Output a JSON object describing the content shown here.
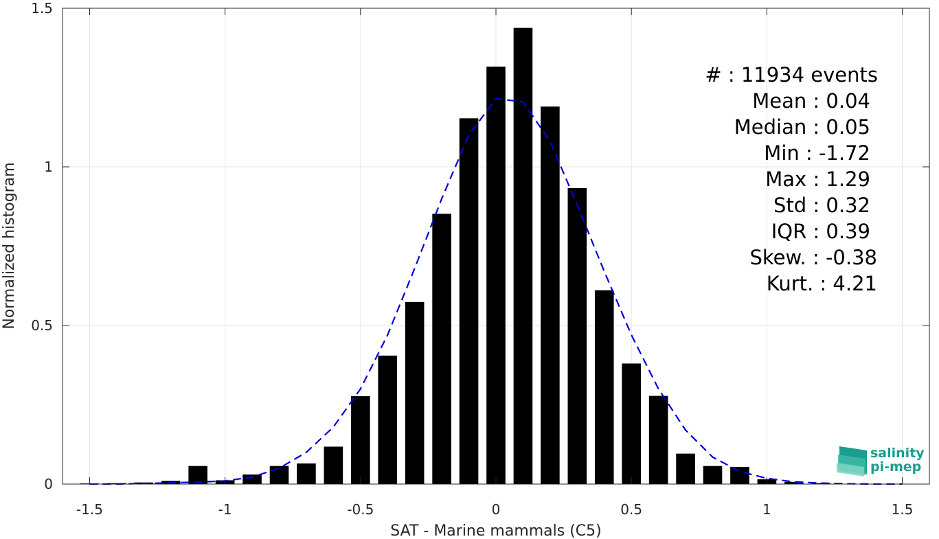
{
  "chart_data": {
    "type": "bar",
    "title": "",
    "xlabel": "SAT - Marine mammals (C5)",
    "ylabel": "Normalized histogram",
    "xlim": [
      -1.6,
      1.6
    ],
    "ylim": [
      0,
      1.5
    ],
    "xticks": [
      -1.5,
      -1,
      -0.5,
      0,
      0.5,
      1,
      1.5
    ],
    "xtick_labels": [
      "-1.5",
      "-1",
      "-0.5",
      "0",
      "0.5",
      "1",
      "1.5"
    ],
    "yticks": [
      0,
      0.5,
      1,
      1.5
    ],
    "ytick_labels": [
      "0",
      "0.5",
      "1",
      "1.5"
    ],
    "grid": true,
    "bar_width": 0.07,
    "bars": {
      "x": [
        -1.5,
        -1.4,
        -1.3,
        -1.2,
        -1.1,
        -1.0,
        -0.9,
        -0.8,
        -0.7,
        -0.6,
        -0.5,
        -0.4,
        -0.3,
        -0.2,
        -0.1,
        0.0,
        0.1,
        0.2,
        0.3,
        0.4,
        0.5,
        0.6,
        0.7,
        0.8,
        0.9,
        1.0,
        1.1,
        1.2
      ],
      "values": [
        0.002,
        0.003,
        0.005,
        0.01,
        0.057,
        0.012,
        0.03,
        0.057,
        0.065,
        0.118,
        0.277,
        0.405,
        0.574,
        0.852,
        1.153,
        1.316,
        1.438,
        1.19,
        0.933,
        0.611,
        0.38,
        0.278,
        0.096,
        0.057,
        0.054,
        0.015,
        0.007,
        0.003
      ],
      "color": "#000000"
    },
    "fit_curve": {
      "style": "dashed",
      "color": "#0000dd",
      "x": [
        -1.5,
        -1.4,
        -1.3,
        -1.2,
        -1.1,
        -1.0,
        -0.9,
        -0.8,
        -0.7,
        -0.6,
        -0.5,
        -0.4,
        -0.3,
        -0.2,
        -0.1,
        0.0,
        0.1,
        0.2,
        0.3,
        0.4,
        0.5,
        0.6,
        0.7,
        0.8,
        0.9,
        1.0,
        1.1,
        1.2,
        1.3,
        1.4,
        1.5
      ],
      "y": [
        0.0,
        0.0,
        0.002,
        0.004,
        0.006,
        0.01,
        0.022,
        0.05,
        0.1,
        0.18,
        0.3,
        0.47,
        0.68,
        0.9,
        1.1,
        1.215,
        1.205,
        1.08,
        0.88,
        0.67,
        0.47,
        0.3,
        0.17,
        0.085,
        0.04,
        0.018,
        0.007,
        0.003,
        0.001,
        0.0,
        0.0
      ]
    },
    "stats": [
      "#  : 11934 events",
      "Mean : 0.04",
      "Median : 0.05",
      "Min : -1.72",
      "Max : 1.29",
      "Std : 0.32",
      "IQR : 0.39",
      "Skew. : -0.38",
      "Kurt. : 4.21"
    ]
  },
  "logo": {
    "line1": "salinity",
    "line2": "pi-mep",
    "colors": [
      "#1a9e8f",
      "#7fd6c4"
    ]
  }
}
